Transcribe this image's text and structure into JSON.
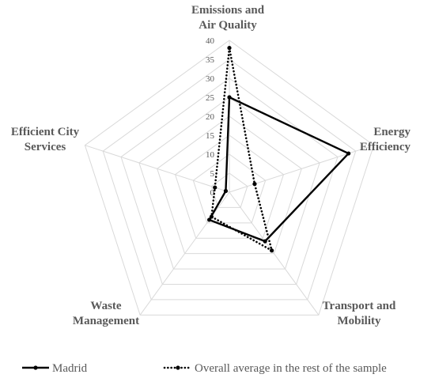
{
  "chart_data": {
    "type": "radar",
    "axes": [
      [
        "Emissions and",
        "Air Quality"
      ],
      [
        "Energy",
        "Efficiency"
      ],
      [
        "Transport and",
        "Mobility"
      ],
      [
        "Waste",
        "Management"
      ],
      [
        "Efficient City",
        "Services"
      ]
    ],
    "ticks": [
      "0",
      "5",
      "10",
      "15",
      "20",
      "25",
      "30",
      "35",
      "40"
    ],
    "rmax": 40,
    "grid": true,
    "legend_position": "bottom",
    "series": [
      {
        "name": "Madrid",
        "values": [
          25,
          33,
          16,
          9,
          1
        ],
        "style": "solid",
        "color": "#000000"
      },
      {
        "name": "Overall average in the rest of the sample",
        "values": [
          38,
          7,
          19,
          8,
          4
        ],
        "style": "dotted",
        "color": "#000000"
      }
    ]
  }
}
